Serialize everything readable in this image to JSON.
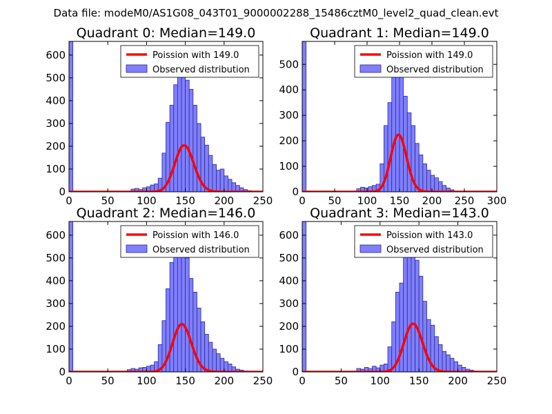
{
  "suptitle": "Data file: modeM0/AS1G08_043T01_9000002288_15486cztM0_level2_quad_clean.evt",
  "colors": {
    "hist_fill": "#7f7fff",
    "hist_edge": "#2a2a8c",
    "poisson_line": "#ff0000",
    "axis": "#000000"
  },
  "chart_data": [
    {
      "type": "bar",
      "title": "Quadrant 0: Median=149.0",
      "median": 149.0,
      "xlim": [
        0,
        250
      ],
      "ylim": [
        0,
        660
      ],
      "xticks": [
        0,
        50,
        100,
        150,
        200,
        250
      ],
      "yticks": [
        0,
        100,
        200,
        300,
        400,
        500,
        600
      ],
      "bin_width": 5,
      "series": [
        {
          "name": "Observed distribution",
          "bins": [
            [
              0,
              660
            ],
            [
              80,
              12
            ],
            [
              85,
              15
            ],
            [
              90,
              10
            ],
            [
              95,
              18
            ],
            [
              100,
              22
            ],
            [
              105,
              30
            ],
            [
              110,
              35
            ],
            [
              115,
              60
            ],
            [
              120,
              170
            ],
            [
              125,
              305
            ],
            [
              130,
              380
            ],
            [
              135,
              470
            ],
            [
              140,
              600
            ],
            [
              145,
              550
            ],
            [
              150,
              490
            ],
            [
              155,
              450
            ],
            [
              160,
              380
            ],
            [
              165,
              300
            ],
            [
              170,
              240
            ],
            [
              175,
              205
            ],
            [
              180,
              160
            ],
            [
              185,
              120
            ],
            [
              190,
              95
            ],
            [
              195,
              100
            ],
            [
              200,
              70
            ],
            [
              205,
              55
            ],
            [
              210,
              40
            ],
            [
              215,
              28
            ],
            [
              220,
              18
            ],
            [
              225,
              10
            ],
            [
              230,
              5
            ],
            [
              235,
              3
            ]
          ]
        },
        {
          "name": "Poission with 149.0",
          "mean": 149.0,
          "total": 6250
        }
      ],
      "legend": [
        "Poission with 149.0",
        "Observed distribution"
      ],
      "legend_position": "top-right"
    },
    {
      "type": "bar",
      "title": "Quadrant 1: Median=149.0",
      "median": 149.0,
      "xlim": [
        0,
        300
      ],
      "ylim": [
        0,
        590
      ],
      "xticks": [
        0,
        50,
        100,
        150,
        200,
        250,
        300
      ],
      "yticks": [
        0,
        100,
        200,
        300,
        400,
        500
      ],
      "bin_width": 6,
      "series": [
        {
          "name": "Observed distribution",
          "bins": [
            [
              0,
              590
            ],
            [
              84,
              12
            ],
            [
              90,
              18
            ],
            [
              96,
              15
            ],
            [
              102,
              20
            ],
            [
              108,
              25
            ],
            [
              114,
              30
            ],
            [
              120,
              110
            ],
            [
              126,
              260
            ],
            [
              132,
              350
            ],
            [
              138,
              500
            ],
            [
              144,
              555
            ],
            [
              150,
              470
            ],
            [
              156,
              375
            ],
            [
              162,
              310
            ],
            [
              168,
              260
            ],
            [
              174,
              190
            ],
            [
              180,
              145
            ],
            [
              186,
              110
            ],
            [
              192,
              85
            ],
            [
              198,
              65
            ],
            [
              204,
              55
            ],
            [
              210,
              40
            ],
            [
              216,
              25
            ],
            [
              222,
              15
            ],
            [
              228,
              8
            ]
          ]
        },
        {
          "name": "Poission with 149.0",
          "mean": 149.0,
          "total": 6860
        }
      ],
      "legend": [
        "Poission with 149.0",
        "Observed distribution"
      ],
      "legend_position": "top-right"
    },
    {
      "type": "bar",
      "title": "Quadrant 2: Median=146.0",
      "median": 146.0,
      "xlim": [
        0,
        250
      ],
      "ylim": [
        0,
        660
      ],
      "xticks": [
        0,
        50,
        100,
        150,
        200,
        250
      ],
      "yticks": [
        0,
        100,
        200,
        300,
        400,
        500,
        600
      ],
      "bin_width": 5,
      "series": [
        {
          "name": "Observed distribution",
          "bins": [
            [
              0,
              660
            ],
            [
              75,
              10
            ],
            [
              80,
              15
            ],
            [
              85,
              12
            ],
            [
              90,
              18
            ],
            [
              95,
              20
            ],
            [
              100,
              25
            ],
            [
              105,
              30
            ],
            [
              110,
              45
            ],
            [
              115,
              120
            ],
            [
              120,
              225
            ],
            [
              125,
              365
            ],
            [
              130,
              480
            ],
            [
              135,
              560
            ],
            [
              140,
              630
            ],
            [
              145,
              610
            ],
            [
              150,
              500
            ],
            [
              155,
              410
            ],
            [
              160,
              350
            ],
            [
              165,
              280
            ],
            [
              170,
              220
            ],
            [
              175,
              165
            ],
            [
              180,
              130
            ],
            [
              185,
              100
            ],
            [
              190,
              80
            ],
            [
              195,
              60
            ],
            [
              200,
              45
            ],
            [
              205,
              35
            ],
            [
              210,
              22
            ],
            [
              215,
              12
            ],
            [
              220,
              8
            ],
            [
              225,
              4
            ]
          ]
        },
        {
          "name": "Poission with 146.0",
          "mean": 146.0,
          "total": 6350
        }
      ],
      "legend": [
        "Poission with 146.0",
        "Observed distribution"
      ],
      "legend_position": "top-right"
    },
    {
      "type": "bar",
      "title": "Quadrant 3: Median=143.0",
      "median": 143.0,
      "xlim": [
        0,
        250
      ],
      "ylim": [
        0,
        660
      ],
      "xticks": [
        0,
        50,
        100,
        150,
        200,
        250
      ],
      "yticks": [
        0,
        100,
        200,
        300,
        400,
        500,
        600
      ],
      "bin_width": 5,
      "series": [
        {
          "name": "Observed distribution",
          "bins": [
            [
              0,
              660
            ],
            [
              70,
              15
            ],
            [
              75,
              12
            ],
            [
              80,
              20
            ],
            [
              85,
              15
            ],
            [
              90,
              25
            ],
            [
              95,
              18
            ],
            [
              100,
              30
            ],
            [
              105,
              35
            ],
            [
              110,
              110
            ],
            [
              115,
              220
            ],
            [
              120,
              350
            ],
            [
              125,
              390
            ],
            [
              130,
              520
            ],
            [
              135,
              625
            ],
            [
              140,
              560
            ],
            [
              145,
              490
            ],
            [
              150,
              420
            ],
            [
              155,
              310
            ],
            [
              160,
              230
            ],
            [
              165,
              205
            ],
            [
              170,
              155
            ],
            [
              175,
              120
            ],
            [
              180,
              90
            ],
            [
              185,
              75
            ],
            [
              190,
              60
            ],
            [
              195,
              45
            ],
            [
              200,
              30
            ],
            [
              205,
              20
            ],
            [
              210,
              12
            ],
            [
              215,
              8
            ],
            [
              220,
              4
            ]
          ]
        },
        {
          "name": "Poission with 143.0",
          "mean": 143.0,
          "total": 6350
        }
      ],
      "legend": [
        "Poission with 143.0",
        "Observed distribution"
      ],
      "legend_position": "top-right"
    }
  ]
}
